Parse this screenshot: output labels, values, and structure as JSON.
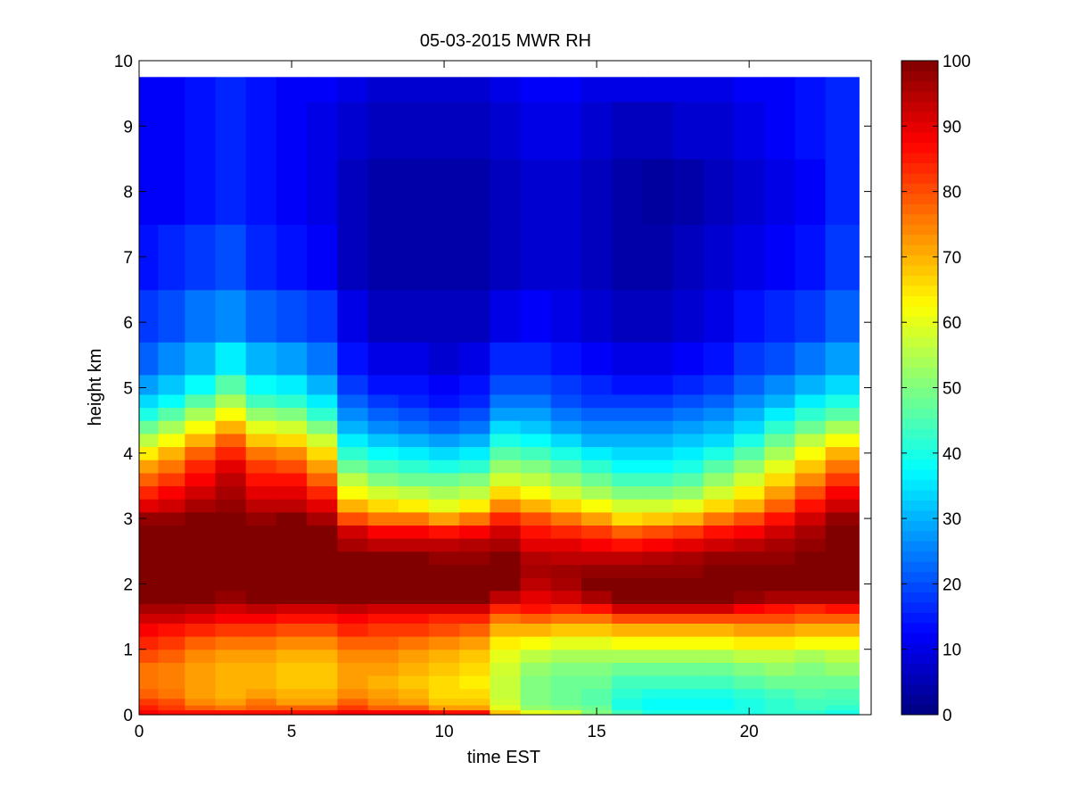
{
  "chart_data": {
    "type": "heatmap",
    "title": "05-03-2015 MWR RH",
    "xlabel": "time EST",
    "ylabel": "height km",
    "xlim": [
      0,
      24
    ],
    "ylim": [
      0,
      10
    ],
    "x_ticks": [
      "0",
      "5",
      "10",
      "15",
      "20"
    ],
    "y_ticks": [
      "0",
      "1",
      "2",
      "3",
      "4",
      "5",
      "6",
      "7",
      "8",
      "9",
      "10"
    ],
    "colorbar": {
      "colormap": "jet",
      "range": [
        0,
        100
      ],
      "ticks": [
        "0",
        "10",
        "20",
        "30",
        "40",
        "50",
        "60",
        "70",
        "80",
        "90",
        "100"
      ]
    },
    "x_centers": [
      0.25,
      1,
      2,
      3,
      4,
      5,
      6,
      7,
      8,
      9,
      10,
      11,
      12,
      13,
      14,
      15,
      16,
      17,
      18,
      19,
      20,
      21,
      22,
      23
    ],
    "y_values_km": [
      0,
      0.05,
      0.1,
      0.2,
      0.3,
      0.5,
      0.7,
      0.9,
      1.1,
      1.3,
      1.5,
      1.6,
      1.8,
      2.0,
      2.2,
      2.4,
      2.6,
      2.8,
      3.0,
      3.2,
      3.4,
      3.6,
      3.8,
      4.0,
      4.2,
      4.4,
      4.6,
      4.8,
      5.0,
      5.4,
      6.0,
      7.0,
      8.0,
      9.0,
      9.75
    ],
    "rh_percent": [
      [
        88,
        86,
        86,
        86,
        86,
        86,
        86,
        88,
        88,
        88,
        86,
        86,
        68,
        60,
        58,
        50,
        44,
        40,
        40,
        40,
        40,
        42,
        42,
        40
      ],
      [
        88,
        86,
        86,
        86,
        86,
        86,
        86,
        88,
        88,
        88,
        86,
        86,
        68,
        60,
        58,
        50,
        44,
        40,
        40,
        40,
        40,
        42,
        42,
        40
      ],
      [
        85,
        82,
        78,
        76,
        78,
        78,
        78,
        82,
        78,
        78,
        72,
        72,
        60,
        52,
        50,
        48,
        40,
        38,
        38,
        38,
        40,
        42,
        44,
        42
      ],
      [
        82,
        80,
        74,
        72,
        76,
        72,
        72,
        78,
        74,
        72,
        68,
        68,
        58,
        50,
        48,
        46,
        40,
        38,
        38,
        38,
        40,
        42,
        44,
        44
      ],
      [
        78,
        76,
        72,
        70,
        72,
        70,
        70,
        74,
        72,
        70,
        66,
        66,
        57,
        50,
        48,
        46,
        42,
        40,
        40,
        40,
        42,
        44,
        46,
        45
      ],
      [
        76,
        75,
        72,
        70,
        70,
        68,
        68,
        72,
        70,
        68,
        66,
        64,
        57,
        50,
        48,
        48,
        44,
        44,
        44,
        44,
        46,
        48,
        48,
        48
      ],
      [
        76,
        75,
        72,
        70,
        70,
        68,
        68,
        72,
        72,
        70,
        68,
        66,
        58,
        52,
        50,
        50,
        48,
        48,
        48,
        48,
        50,
        52,
        50,
        52
      ],
      [
        80,
        78,
        74,
        72,
        72,
        70,
        70,
        74,
        74,
        72,
        70,
        68,
        60,
        56,
        54,
        54,
        54,
        54,
        54,
        54,
        56,
        56,
        54,
        56
      ],
      [
        84,
        82,
        78,
        76,
        76,
        74,
        74,
        78,
        78,
        76,
        74,
        72,
        64,
        62,
        60,
        60,
        62,
        62,
        62,
        62,
        64,
        64,
        62,
        62
      ],
      [
        88,
        86,
        84,
        82,
        82,
        80,
        80,
        84,
        82,
        82,
        80,
        78,
        70,
        70,
        68,
        68,
        70,
        70,
        70,
        70,
        72,
        72,
        70,
        70
      ],
      [
        92,
        92,
        90,
        88,
        88,
        86,
        86,
        88,
        86,
        86,
        84,
        84,
        76,
        78,
        76,
        76,
        80,
        80,
        80,
        80,
        80,
        80,
        78,
        78
      ],
      [
        96,
        96,
        95,
        92,
        94,
        92,
        92,
        94,
        92,
        92,
        92,
        92,
        84,
        86,
        84,
        86,
        92,
        92,
        92,
        92,
        88,
        86,
        84,
        86
      ],
      [
        100,
        100,
        100,
        98,
        100,
        100,
        100,
        100,
        100,
        100,
        100,
        100,
        94,
        90,
        92,
        96,
        100,
        100,
        100,
        100,
        98,
        96,
        96,
        96
      ],
      [
        100,
        100,
        100,
        100,
        100,
        100,
        100,
        100,
        100,
        100,
        100,
        100,
        100,
        94,
        96,
        100,
        100,
        100,
        100,
        100,
        100,
        100,
        100,
        100
      ],
      [
        100,
        100,
        100,
        100,
        100,
        100,
        100,
        100,
        100,
        100,
        100,
        100,
        100,
        96,
        97,
        98,
        98,
        98,
        98,
        100,
        100,
        100,
        100,
        100
      ],
      [
        100,
        100,
        100,
        100,
        100,
        100,
        100,
        100,
        100,
        100,
        98,
        98,
        100,
        95,
        94,
        94,
        94,
        95,
        96,
        98,
        98,
        98,
        100,
        100
      ],
      [
        100,
        100,
        100,
        100,
        100,
        100,
        100,
        96,
        94,
        94,
        94,
        95,
        96,
        90,
        90,
        88,
        86,
        88,
        90,
        92,
        94,
        96,
        98,
        100
      ],
      [
        100,
        100,
        100,
        100,
        100,
        100,
        100,
        92,
        88,
        88,
        86,
        88,
        92,
        86,
        84,
        82,
        78,
        80,
        82,
        86,
        88,
        92,
        96,
        100
      ],
      [
        98,
        98,
        100,
        100,
        98,
        100,
        96,
        80,
        76,
        76,
        72,
        76,
        84,
        80,
        76,
        72,
        66,
        68,
        70,
        76,
        80,
        86,
        92,
        98
      ],
      [
        90,
        92,
        96,
        98,
        94,
        94,
        90,
        70,
        66,
        64,
        60,
        64,
        74,
        70,
        66,
        62,
        58,
        58,
        60,
        66,
        70,
        78,
        86,
        92
      ],
      [
        84,
        88,
        92,
        96,
        90,
        90,
        84,
        62,
        58,
        56,
        54,
        56,
        66,
        62,
        58,
        54,
        50,
        50,
        52,
        58,
        64,
        72,
        80,
        88
      ],
      [
        78,
        82,
        88,
        94,
        86,
        86,
        78,
        56,
        50,
        48,
        48,
        50,
        58,
        56,
        52,
        48,
        44,
        44,
        46,
        52,
        58,
        66,
        74,
        82
      ],
      [
        72,
        76,
        84,
        90,
        82,
        80,
        72,
        48,
        44,
        42,
        40,
        42,
        52,
        50,
        46,
        42,
        38,
        38,
        40,
        46,
        52,
        60,
        68,
        76
      ],
      [
        64,
        70,
        78,
        84,
        76,
        74,
        66,
        42,
        38,
        36,
        34,
        36,
        46,
        44,
        40,
        36,
        34,
        34,
        36,
        40,
        46,
        54,
        62,
        70
      ],
      [
        56,
        62,
        70,
        78,
        68,
        66,
        58,
        36,
        32,
        30,
        28,
        30,
        40,
        38,
        34,
        30,
        30,
        30,
        32,
        34,
        40,
        48,
        56,
        62
      ],
      [
        48,
        54,
        62,
        70,
        60,
        58,
        50,
        30,
        26,
        24,
        22,
        24,
        34,
        32,
        28,
        26,
        26,
        26,
        28,
        30,
        34,
        42,
        48,
        54
      ],
      [
        40,
        46,
        54,
        62,
        52,
        50,
        42,
        26,
        22,
        20,
        18,
        20,
        28,
        28,
        24,
        22,
        22,
        22,
        24,
        26,
        30,
        36,
        42,
        46
      ],
      [
        34,
        38,
        46,
        54,
        44,
        42,
        36,
        22,
        18,
        16,
        14,
        16,
        24,
        24,
        20,
        18,
        18,
        18,
        20,
        22,
        26,
        30,
        36,
        40
      ],
      [
        28,
        32,
        38,
        46,
        38,
        36,
        30,
        18,
        14,
        14,
        12,
        14,
        20,
        20,
        18,
        16,
        14,
        14,
        16,
        18,
        22,
        26,
        30,
        34
      ],
      [
        22,
        26,
        30,
        36,
        30,
        28,
        24,
        14,
        10,
        10,
        8,
        10,
        16,
        16,
        14,
        12,
        10,
        10,
        12,
        14,
        18,
        20,
        24,
        28
      ],
      [
        18,
        20,
        24,
        26,
        22,
        20,
        18,
        10,
        6,
        6,
        6,
        6,
        10,
        12,
        10,
        8,
        6,
        6,
        8,
        10,
        14,
        16,
        18,
        22
      ],
      [
        14,
        16,
        18,
        20,
        16,
        14,
        12,
        6,
        4,
        4,
        4,
        4,
        6,
        8,
        8,
        6,
        4,
        4,
        6,
        8,
        10,
        12,
        14,
        18
      ],
      [
        12,
        12,
        14,
        16,
        14,
        12,
        10,
        6,
        4,
        4,
        4,
        4,
        6,
        8,
        8,
        6,
        4,
        3,
        4,
        6,
        8,
        10,
        12,
        16
      ],
      [
        12,
        12,
        14,
        16,
        14,
        12,
        10,
        8,
        6,
        6,
        6,
        6,
        8,
        10,
        10,
        8,
        6,
        6,
        8,
        8,
        10,
        12,
        14,
        16
      ],
      [
        12,
        12,
        14,
        16,
        14,
        12,
        12,
        10,
        8,
        8,
        8,
        8,
        10,
        12,
        12,
        10,
        10,
        10,
        10,
        10,
        12,
        12,
        14,
        16
      ]
    ]
  }
}
